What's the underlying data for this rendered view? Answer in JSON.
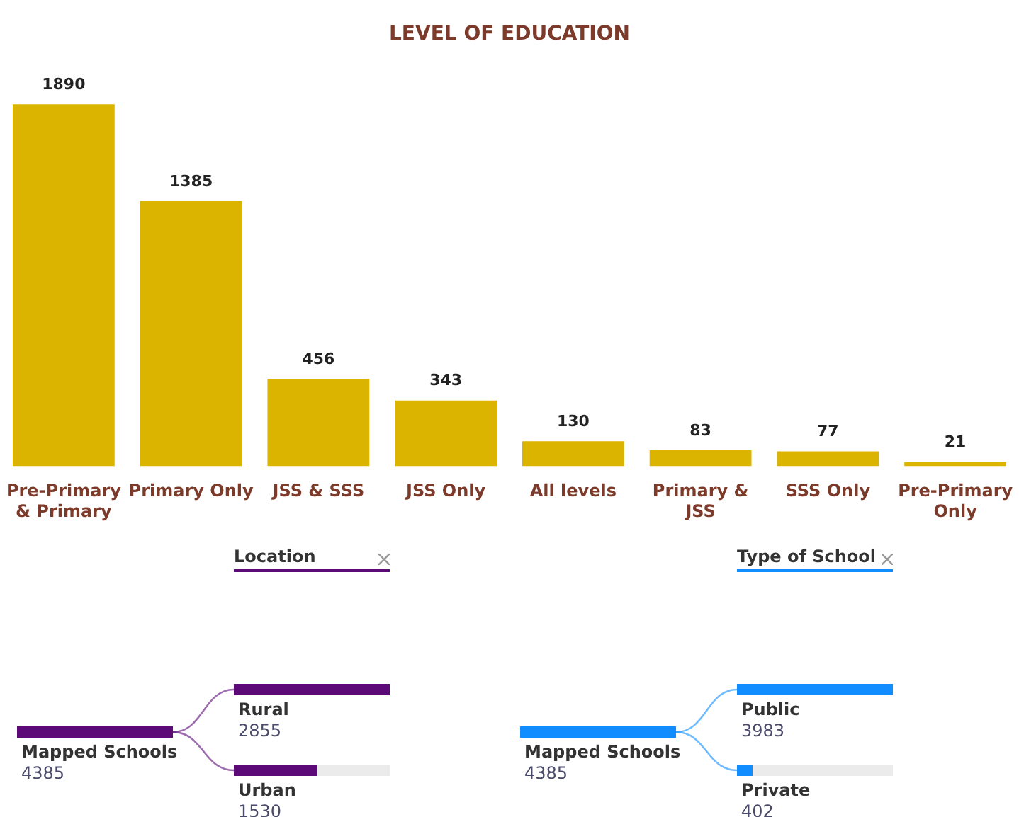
{
  "chart_data": [
    {
      "type": "bar",
      "title": "LEVEL OF EDUCATION",
      "categories": [
        "Pre-Primary & Primary",
        "Primary Only",
        "JSS & SSS",
        "JSS Only",
        "All levels",
        "Primary & JSS",
        "SSS Only",
        "Pre-Primary Only"
      ],
      "values": [
        1890,
        1385,
        456,
        343,
        130,
        83,
        77,
        21
      ],
      "color": "#dbb400",
      "data_labels": true
    },
    {
      "type": "other",
      "title": "Location",
      "categories": [
        "Mapped Schools",
        "Rural",
        "Urban"
      ],
      "values": [
        4385,
        2855,
        1530
      ],
      "colors": [
        "#5c0a78",
        "#5c0a78",
        "#5c0a78"
      ],
      "data_labels": true
    },
    {
      "type": "other",
      "title": "Type of School",
      "categories": [
        "Mapped Schools",
        "Public",
        "Private"
      ],
      "values": [
        4385,
        3983,
        402
      ],
      "colors": [
        "#118dff",
        "#118dff",
        "#118dff"
      ],
      "data_labels": true
    }
  ]
}
